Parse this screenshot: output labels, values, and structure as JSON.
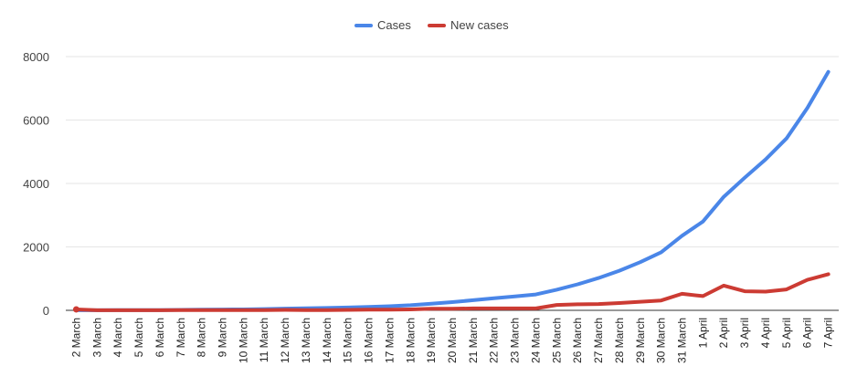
{
  "chart_data": {
    "type": "line",
    "title": "",
    "xlabel": "",
    "ylabel": "",
    "ylim": [
      0,
      8000
    ],
    "yticks": [
      0,
      2000,
      4000,
      6000,
      8000
    ],
    "grid": true,
    "legend_position": "top-center",
    "categories": [
      "2 March",
      "3 March",
      "4 March",
      "5 March",
      "6 March",
      "7 March",
      "8 March",
      "9 March",
      "10 March",
      "11 March",
      "12 March",
      "13 March",
      "14 March",
      "15 March",
      "16 March",
      "17 March",
      "18 March",
      "19 March",
      "20 March",
      "21 March",
      "22 March",
      "23 March",
      "24 March",
      "25 March",
      "26 March",
      "27 March",
      "28 March",
      "29 March",
      "30 March",
      "31 March",
      "1 April",
      "2 April",
      "3 April",
      "4 April",
      "5 April",
      "6 April",
      "7 April"
    ],
    "series": [
      {
        "name": "Cases",
        "color": "#4a86e8",
        "values": [
          2,
          4,
          6,
          8,
          10,
          15,
          20,
          25,
          30,
          40,
          55,
          65,
          75,
          90,
          110,
          130,
          160,
          210,
          260,
          320,
          380,
          440,
          500,
          650,
          820,
          1020,
          1250,
          1520,
          1830,
          2350,
          2800,
          3580,
          4180,
          4760,
          5420,
          6380,
          7520
        ]
      },
      {
        "name": "New cases",
        "color": "#cc3b33",
        "values": [
          30,
          2,
          2,
          2,
          2,
          5,
          5,
          5,
          5,
          10,
          15,
          10,
          10,
          15,
          20,
          20,
          30,
          50,
          50,
          60,
          60,
          60,
          60,
          170,
          190,
          200,
          230,
          270,
          310,
          520,
          450,
          780,
          600,
          590,
          660,
          960,
          1140
        ]
      }
    ]
  }
}
